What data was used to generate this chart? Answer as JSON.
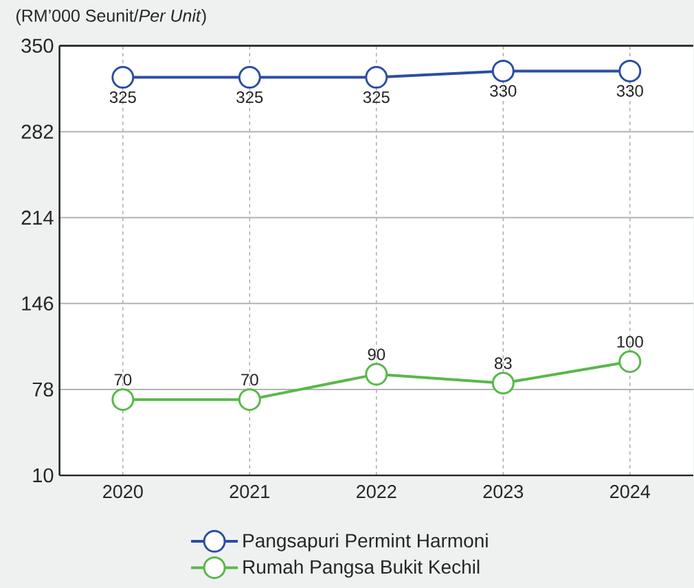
{
  "chart_data": {
    "type": "line",
    "ylabel": "(RM’000 Seunit/*Per Unit*)",
    "categories": [
      "2020",
      "2021",
      "2022",
      "2023",
      "2024"
    ],
    "series": [
      {
        "name": "Pangsapuri Permint Harmoni",
        "color": "#2b4ea2",
        "values": [
          325,
          325,
          325,
          330,
          330
        ]
      },
      {
        "name": "Rumah Pangsa Bukit Kechil",
        "color": "#5ab84a",
        "values": [
          70,
          70,
          90,
          83,
          100
        ]
      }
    ],
    "ylim": [
      10,
      350
    ],
    "yticks": [
      10,
      78,
      146,
      214,
      282,
      350
    ],
    "data_labels": true,
    "grid": true,
    "legend": "bottom",
    "marker": "circle",
    "line_style": "solid"
  }
}
